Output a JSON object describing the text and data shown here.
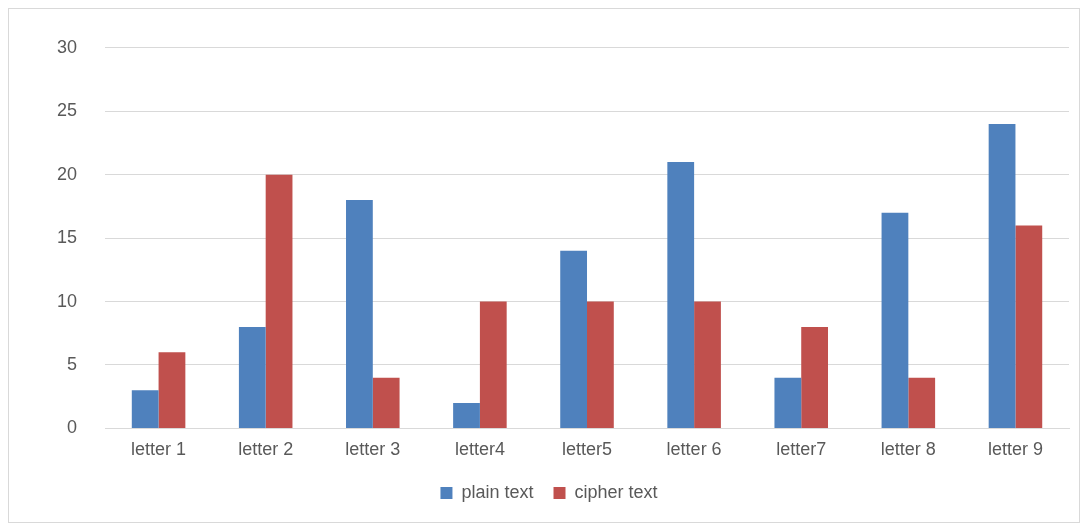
{
  "chart_data": {
    "type": "bar",
    "categories": [
      "letter 1",
      "letter 2",
      "letter 3",
      "letter4",
      "letter5",
      "letter 6",
      "letter7",
      "letter 8",
      "letter 9"
    ],
    "series": [
      {
        "name": "plain text",
        "color": "#4f81bd",
        "values": [
          3,
          8,
          18,
          2,
          14,
          21,
          4,
          17,
          24
        ]
      },
      {
        "name": "cipher text",
        "color": "#c0504d",
        "values": [
          6,
          20,
          4,
          10,
          10,
          10,
          8,
          4,
          16
        ]
      }
    ],
    "ylim": [
      0,
      30
    ],
    "yticks": [
      0,
      5,
      10,
      15,
      20,
      25,
      30
    ],
    "grid": "y",
    "legend": "bottom"
  }
}
